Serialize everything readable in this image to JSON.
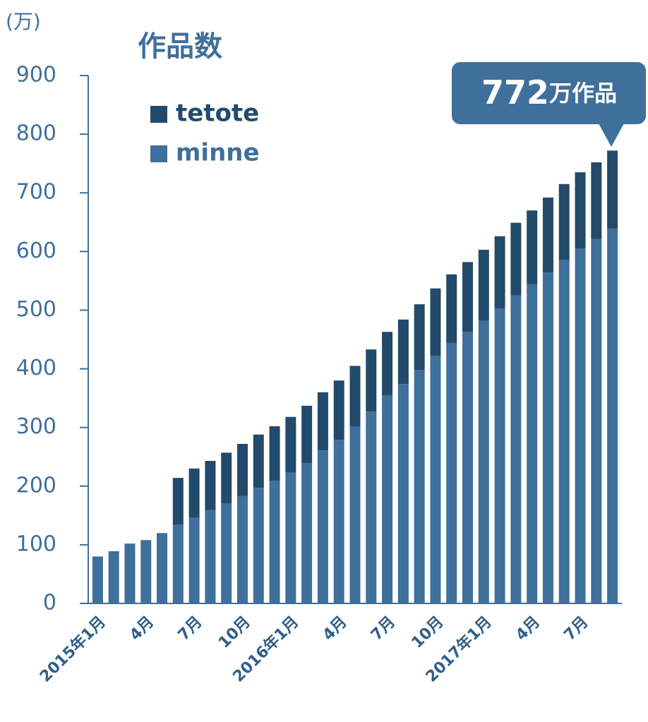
{
  "chart_data": {
    "type": "stacked_bar",
    "title": "作品数",
    "y_label": "(万)",
    "annotation": {
      "number": "772",
      "unit": "万作品"
    },
    "categories": [
      "2015年1月",
      null,
      null,
      "4月",
      null,
      null,
      "7月",
      null,
      null,
      "10月",
      null,
      null,
      "2016年1月",
      null,
      null,
      "4月",
      null,
      null,
      "7月",
      null,
      null,
      "10月",
      null,
      null,
      "2017年1月",
      null,
      null,
      "4月",
      null,
      null,
      "7月",
      null,
      null
    ],
    "series": [
      {
        "name": "minne",
        "color": "#3f6f9b",
        "values": [
          80,
          89,
          102,
          108,
          120,
          134,
          146,
          159,
          170,
          183,
          197,
          209,
          223,
          239,
          261,
          279,
          302,
          327,
          355,
          374,
          398,
          422,
          444,
          463,
          482,
          503,
          525,
          544,
          564,
          586,
          605,
          621,
          639
        ]
      },
      {
        "name": "tetote",
        "color": "#234a6b",
        "values": [
          0,
          0,
          0,
          0,
          0,
          80,
          84,
          84,
          87,
          89,
          91,
          93,
          95,
          98,
          99,
          101,
          103,
          106,
          108,
          110,
          112,
          115,
          117,
          119,
          121,
          123,
          124,
          126,
          128,
          129,
          130,
          131,
          133
        ]
      }
    ],
    "ylim": [
      0,
      900
    ],
    "yticks": [
      0,
      100,
      200,
      300,
      400,
      500,
      600,
      700,
      800,
      900
    ],
    "legend": "top-left"
  }
}
